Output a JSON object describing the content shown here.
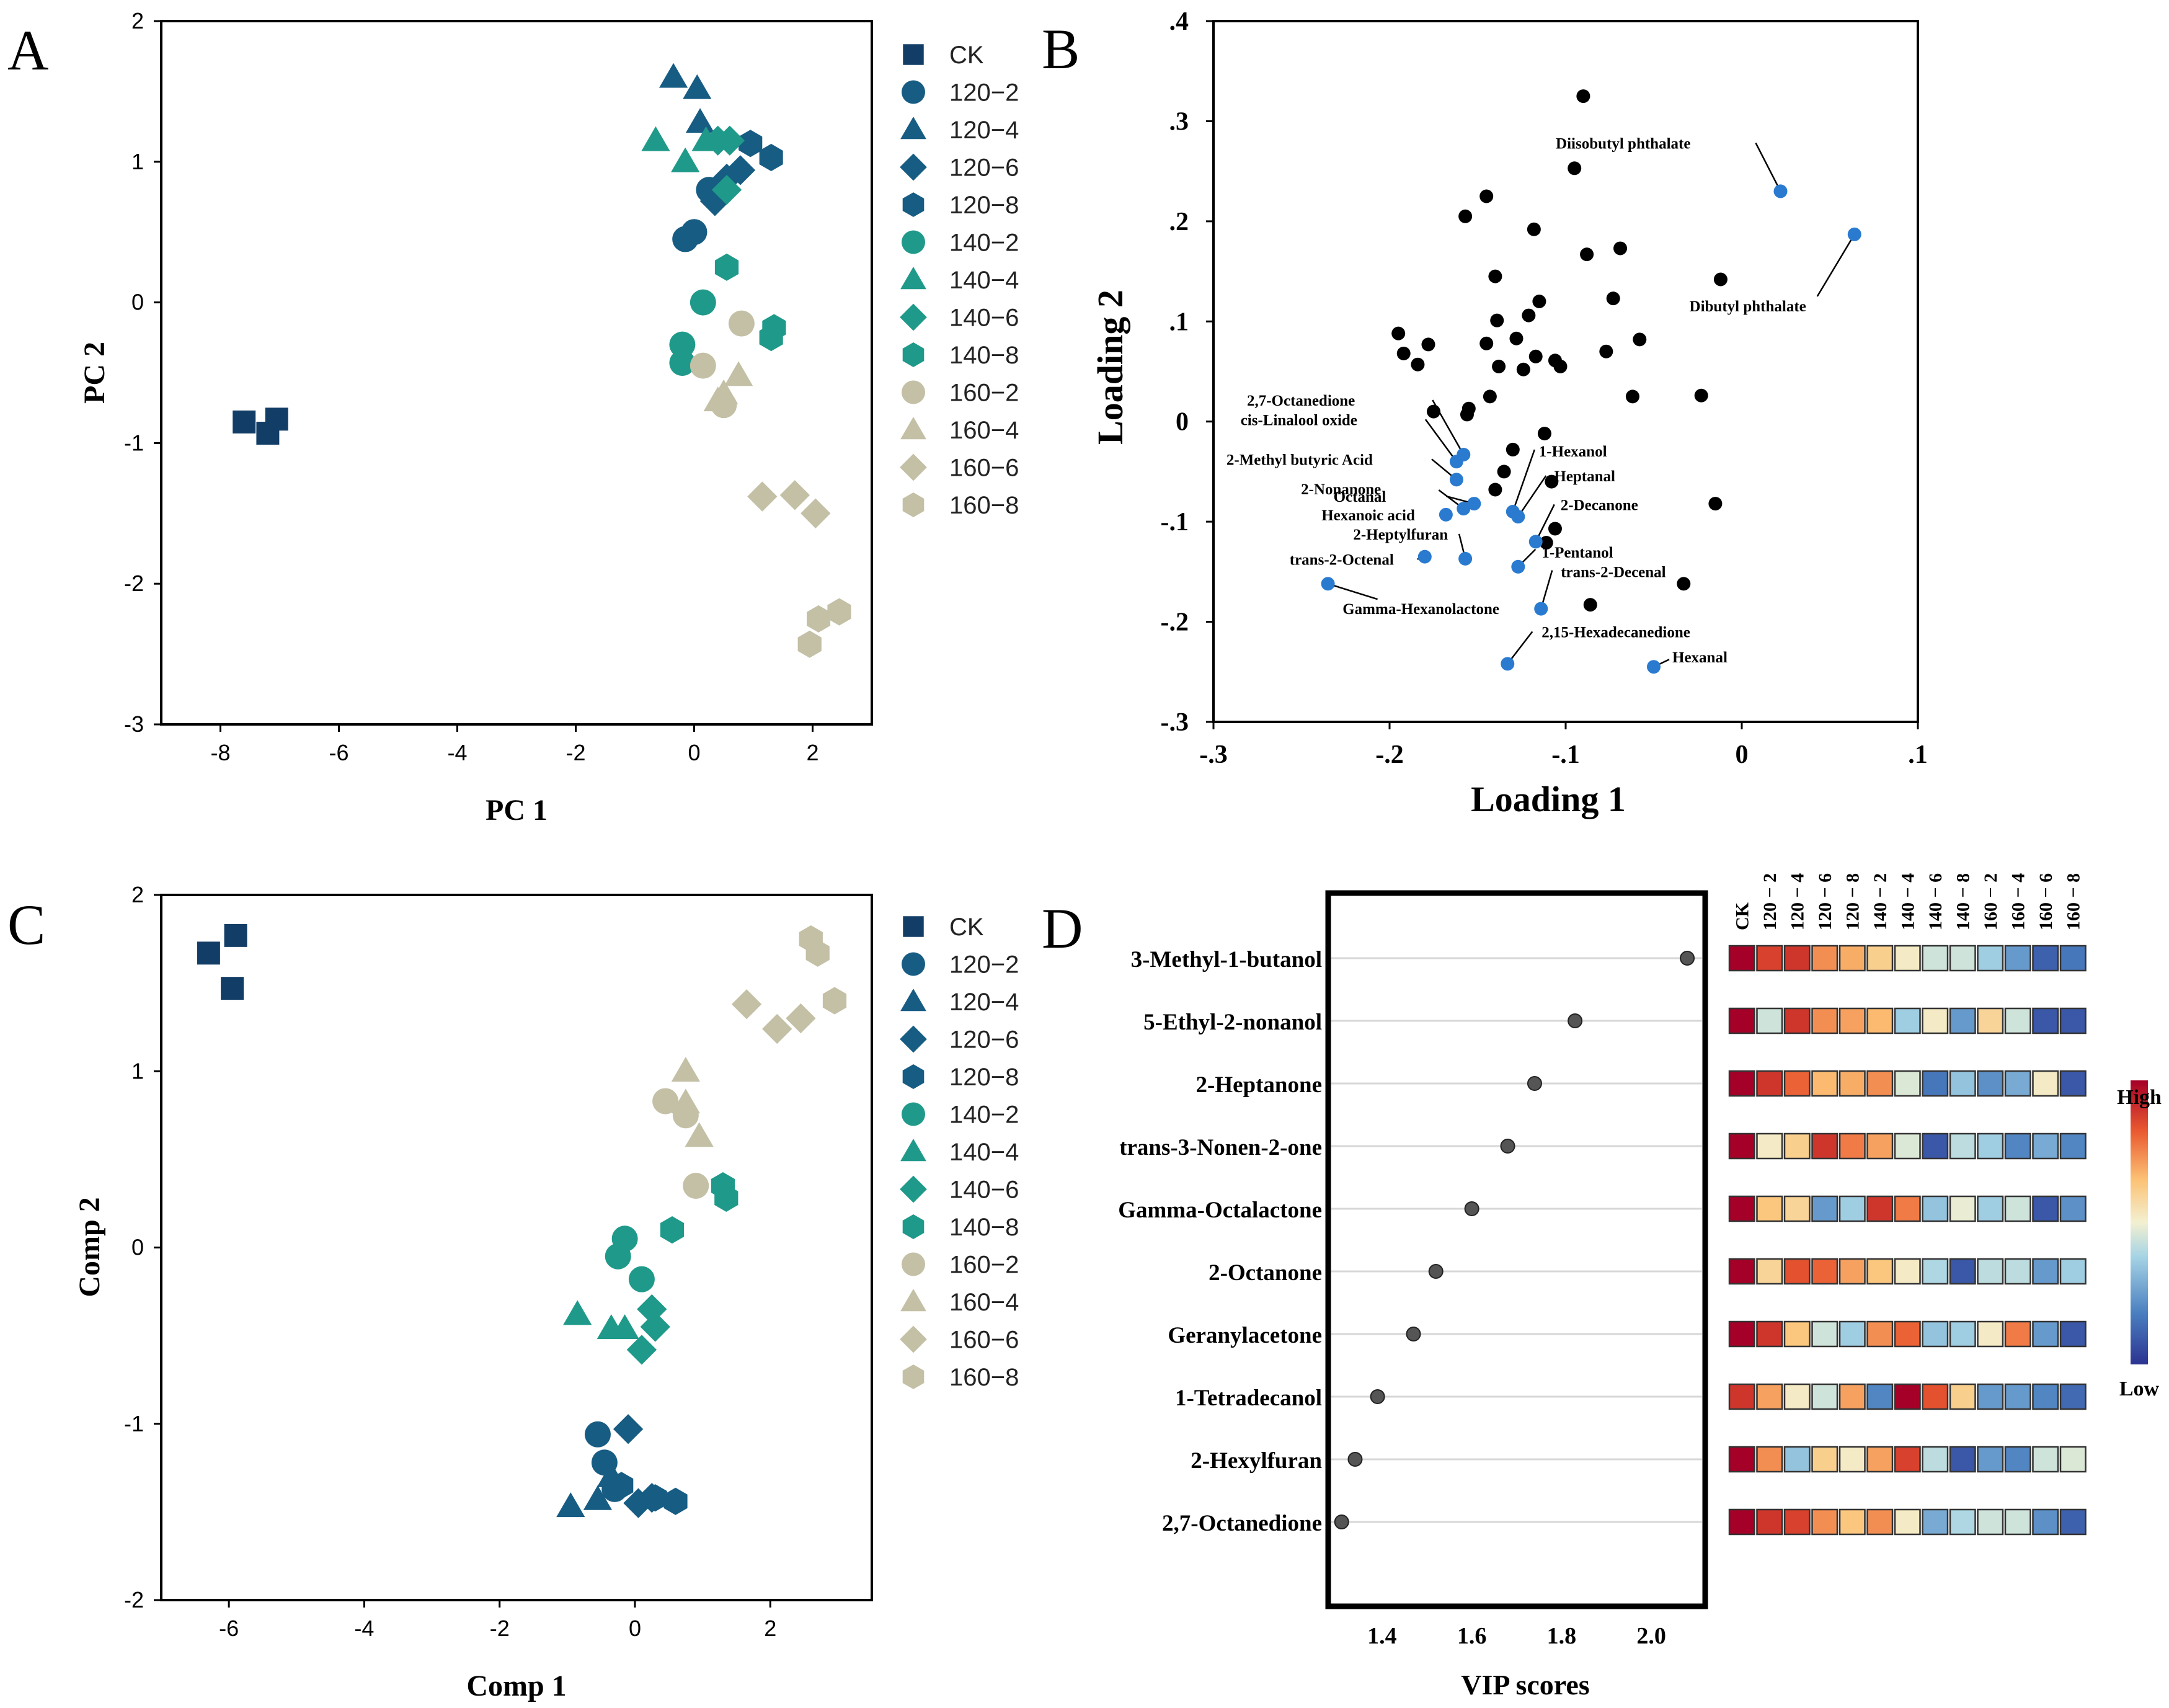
{
  "chart_data": [
    {
      "type": "scatter",
      "panel_label": "A",
      "xlabel": "PC 1",
      "ylabel": "PC 2",
      "xlim": [
        -9,
        3
      ],
      "ylim": [
        -3,
        2
      ],
      "xticks": [
        -8,
        -6,
        -4,
        -2,
        0,
        2
      ],
      "yticks": [
        -3,
        -2,
        -1,
        0,
        1,
        2
      ],
      "legend": {
        "position": "right",
        "entries": [
          {
            "label": "CK",
            "marker": "square",
            "color": "#123d66"
          },
          {
            "label": "120−2",
            "marker": "circle",
            "color": "#175c83"
          },
          {
            "label": "120−4",
            "marker": "triangle",
            "color": "#175c83"
          },
          {
            "label": "120−6",
            "marker": "diamond",
            "color": "#175c83"
          },
          {
            "label": "120−8",
            "marker": "hexagon",
            "color": "#175c83"
          },
          {
            "label": "140−2",
            "marker": "circle",
            "color": "#1f9a8a"
          },
          {
            "label": "140−4",
            "marker": "triangle",
            "color": "#1f9a8a"
          },
          {
            "label": "140−6",
            "marker": "diamond",
            "color": "#1f9a8a"
          },
          {
            "label": "140−8",
            "marker": "hexagon",
            "color": "#1f9a8a"
          },
          {
            "label": "160−2",
            "marker": "circle",
            "color": "#c3c0a6"
          },
          {
            "label": "160−4",
            "marker": "triangle",
            "color": "#c3c0a6"
          },
          {
            "label": "160−6",
            "marker": "diamond",
            "color": "#c3c0a6"
          },
          {
            "label": "160−8",
            "marker": "hexagon",
            "color": "#c3c0a6"
          }
        ]
      },
      "series": [
        {
          "name": "CK",
          "points": [
            [
              -7.6,
              -0.85
            ],
            [
              -7.2,
              -0.93
            ],
            [
              -7.05,
              -0.83
            ]
          ]
        },
        {
          "name": "120−2",
          "points": [
            [
              -0.15,
              0.45
            ],
            [
              0.0,
              0.5
            ],
            [
              0.25,
              0.8
            ]
          ]
        },
        {
          "name": "120−4",
          "points": [
            [
              -0.35,
              1.6
            ],
            [
              0.05,
              1.52
            ],
            [
              0.1,
              1.28
            ]
          ]
        },
        {
          "name": "120−6",
          "points": [
            [
              0.35,
              0.72
            ],
            [
              0.55,
              0.88
            ],
            [
              0.78,
              0.94
            ]
          ]
        },
        {
          "name": "120−8",
          "points": [
            [
              0.95,
              1.13
            ],
            [
              1.3,
              1.03
            ],
            [
              0.45,
              0.82
            ]
          ]
        },
        {
          "name": "140−2",
          "points": [
            [
              0.15,
              0.0
            ],
            [
              -0.2,
              -0.3
            ],
            [
              -0.2,
              -0.43
            ]
          ]
        },
        {
          "name": "140−4",
          "points": [
            [
              -0.65,
              1.15
            ],
            [
              -0.15,
              1.0
            ],
            [
              0.2,
              1.15
            ]
          ]
        },
        {
          "name": "140−6",
          "points": [
            [
              0.4,
              1.15
            ],
            [
              0.6,
              1.15
            ],
            [
              0.55,
              0.8
            ]
          ]
        },
        {
          "name": "140−8",
          "points": [
            [
              0.55,
              0.25
            ],
            [
              1.35,
              -0.18
            ],
            [
              1.3,
              -0.25
            ]
          ]
        },
        {
          "name": "160−2",
          "points": [
            [
              0.8,
              -0.15
            ],
            [
              0.15,
              -0.45
            ],
            [
              0.5,
              -0.73
            ]
          ]
        },
        {
          "name": "160−4",
          "points": [
            [
              0.75,
              -0.52
            ],
            [
              0.5,
              -0.65
            ],
            [
              0.4,
              -0.7
            ]
          ]
        },
        {
          "name": "160−6",
          "points": [
            [
              1.15,
              -1.38
            ],
            [
              1.7,
              -1.37
            ],
            [
              2.05,
              -1.5
            ]
          ]
        },
        {
          "name": "160−8",
          "points": [
            [
              1.95,
              -2.43
            ],
            [
              2.1,
              -2.25
            ],
            [
              2.45,
              -2.2
            ]
          ]
        }
      ]
    },
    {
      "type": "scatter",
      "panel_label": "B",
      "xlabel": "Loading 1",
      "ylabel": "Loading 2",
      "xlim": [
        -0.3,
        0.1
      ],
      "ylim": [
        -0.3,
        0.4
      ],
      "xticks": [
        -0.3,
        -0.2,
        -0.1,
        0,
        0.1
      ],
      "yticks": [
        -0.3,
        -0.2,
        -0.1,
        0,
        0.1,
        0.2,
        0.3,
        0.4
      ],
      "series": [
        {
          "name": "other compounds",
          "color": "#000000",
          "points": [
            [
              -0.09,
              0.325
            ],
            [
              -0.095,
              0.253
            ],
            [
              -0.145,
              0.225
            ],
            [
              -0.157,
              0.205
            ],
            [
              -0.118,
              0.192
            ],
            [
              -0.088,
              0.167
            ],
            [
              -0.069,
              0.173
            ],
            [
              -0.14,
              0.145
            ],
            [
              -0.115,
              0.12
            ],
            [
              -0.073,
              0.123
            ],
            [
              -0.012,
              0.142
            ],
            [
              -0.195,
              0.088
            ],
            [
              -0.178,
              0.077
            ],
            [
              -0.145,
              0.078
            ],
            [
              -0.128,
              0.083
            ],
            [
              -0.121,
              0.106
            ],
            [
              -0.139,
              0.101
            ],
            [
              -0.192,
              0.068
            ],
            [
              -0.184,
              0.057
            ],
            [
              -0.138,
              0.055
            ],
            [
              -0.117,
              0.065
            ],
            [
              -0.124,
              0.052
            ],
            [
              -0.103,
              0.055
            ],
            [
              -0.106,
              0.061
            ],
            [
              -0.077,
              0.07
            ],
            [
              -0.058,
              0.082
            ],
            [
              -0.175,
              0.01
            ],
            [
              -0.156,
              0.007
            ],
            [
              -0.155,
              0.013
            ],
            [
              -0.143,
              0.025
            ],
            [
              -0.062,
              0.025
            ],
            [
              -0.023,
              0.026
            ],
            [
              -0.13,
              -0.028
            ],
            [
              -0.112,
              -0.012
            ],
            [
              -0.135,
              -0.05
            ],
            [
              -0.14,
              -0.068
            ],
            [
              -0.108,
              -0.06
            ],
            [
              -0.106,
              -0.107
            ],
            [
              -0.111,
              -0.121
            ],
            [
              -0.033,
              -0.162
            ],
            [
              -0.086,
              -0.183
            ],
            [
              -0.015,
              -0.082
            ]
          ]
        },
        {
          "name": "labeled compounds",
          "color": "#2a7bd0",
          "points": [
            {
              "label": "Diisobutyl phthalate",
              "x": 0.022,
              "y": 0.23
            },
            {
              "label": "Dibutyl phthalate",
              "x": 0.064,
              "y": 0.187
            },
            {
              "label": "2,7-Octanedione",
              "x": -0.158,
              "y": -0.033
            },
            {
              "label": "cis-Linalool oxide",
              "x": -0.162,
              "y": -0.04
            },
            {
              "label": "2-Methyl butyric Acid",
              "x": -0.162,
              "y": -0.058
            },
            {
              "label": "2-Nonanone",
              "x": -0.158,
              "y": -0.087
            },
            {
              "label": "Octanal",
              "x": -0.152,
              "y": -0.082
            },
            {
              "label": "Hexanoic acid",
              "x": -0.168,
              "y": -0.093
            },
            {
              "label": "2-Heptylfuran",
              "x": -0.157,
              "y": -0.137
            },
            {
              "label": "trans-2-Octenal",
              "x": -0.18,
              "y": -0.135
            },
            {
              "label": "Gamma-Hexanolactone",
              "x": -0.235,
              "y": -0.162
            },
            {
              "label": "1-Hexanol",
              "x": -0.13,
              "y": -0.09
            },
            {
              "label": "Heptanal",
              "x": -0.127,
              "y": -0.095
            },
            {
              "label": "2-Decanone",
              "x": -0.117,
              "y": -0.12
            },
            {
              "label": "1-Pentanol",
              "x": -0.127,
              "y": -0.145
            },
            {
              "label": "trans-2-Decenal",
              "x": -0.114,
              "y": -0.187
            },
            {
              "label": "2,15-Hexadecanedione",
              "x": -0.133,
              "y": -0.242
            },
            {
              "label": "Hexanal",
              "x": -0.05,
              "y": -0.245
            }
          ]
        }
      ]
    },
    {
      "type": "scatter",
      "panel_label": "C",
      "xlabel": "Comp 1",
      "ylabel": "Comp 2",
      "xlim": [
        -7,
        3.5
      ],
      "ylim": [
        -2,
        2
      ],
      "xticks": [
        -6,
        -4,
        -2,
        0,
        2
      ],
      "yticks": [
        -2,
        -1,
        0,
        1,
        2
      ],
      "legend": {
        "position": "right",
        "same_as": "A"
      },
      "series": [
        {
          "name": "CK",
          "points": [
            [
              -6.3,
              1.67
            ],
            [
              -5.9,
              1.77
            ],
            [
              -5.95,
              1.47
            ]
          ]
        },
        {
          "name": "120−2",
          "points": [
            [
              -0.55,
              -1.06
            ],
            [
              -0.45,
              -1.22
            ],
            [
              -0.3,
              -1.37
            ]
          ]
        },
        {
          "name": "120−4",
          "points": [
            [
              -0.95,
              -1.47
            ],
            [
              -0.55,
              -1.43
            ],
            [
              -0.35,
              -1.3
            ]
          ]
        },
        {
          "name": "120−6",
          "points": [
            [
              -0.1,
              -1.03
            ],
            [
              0.05,
              -1.45
            ],
            [
              0.25,
              -1.42
            ]
          ]
        },
        {
          "name": "120−8",
          "points": [
            [
              -0.2,
              -1.35
            ],
            [
              0.3,
              -1.42
            ],
            [
              0.6,
              -1.44
            ]
          ]
        },
        {
          "name": "140−2",
          "points": [
            [
              -0.15,
              0.05
            ],
            [
              -0.25,
              -0.05
            ],
            [
              0.1,
              -0.18
            ]
          ]
        },
        {
          "name": "140−4",
          "points": [
            [
              -0.85,
              -0.38
            ],
            [
              -0.35,
              -0.46
            ],
            [
              -0.15,
              -0.46
            ]
          ]
        },
        {
          "name": "140−6",
          "points": [
            [
              0.25,
              -0.35
            ],
            [
              0.3,
              -0.45
            ],
            [
              0.1,
              -0.58
            ]
          ]
        },
        {
          "name": "140−8",
          "points": [
            [
              0.55,
              0.1
            ],
            [
              1.3,
              0.35
            ],
            [
              1.35,
              0.28
            ]
          ]
        },
        {
          "name": "160−2",
          "points": [
            [
              0.45,
              0.83
            ],
            [
              0.75,
              0.75
            ],
            [
              0.9,
              0.35
            ]
          ]
        },
        {
          "name": "160−4",
          "points": [
            [
              0.75,
              1.0
            ],
            [
              0.75,
              0.82
            ],
            [
              0.95,
              0.63
            ]
          ]
        },
        {
          "name": "160−6",
          "points": [
            [
              1.65,
              1.38
            ],
            [
              2.1,
              1.24
            ],
            [
              2.45,
              1.3
            ]
          ]
        },
        {
          "name": "160−8",
          "points": [
            [
              2.6,
              1.75
            ],
            [
              2.7,
              1.67
            ],
            [
              2.95,
              1.4
            ]
          ]
        }
      ]
    },
    {
      "type": "scatter",
      "panel_label": "D",
      "xlabel": "VIP scores",
      "xlim": [
        1.28,
        2.12
      ],
      "xticks": [
        1.4,
        1.6,
        1.8,
        2.0
      ],
      "compounds": [
        "3-Methyl-1-butanol",
        "5-Ethyl-2-nonanol",
        "2-Heptanone",
        "trans-3-Nonen-2-one",
        "Gamma-Octalactone",
        "2-Octanone",
        "Geranylacetone",
        "1-Tetradecanol",
        "2-Hexylfuran",
        "2,7-Octanedione"
      ],
      "values": [
        2.08,
        1.83,
        1.74,
        1.68,
        1.6,
        1.52,
        1.47,
        1.39,
        1.34,
        1.31
      ]
    },
    {
      "type": "heatmap",
      "panel_label": "D",
      "columns": [
        "CK",
        "120 − 2",
        "120 − 4",
        "120 − 6",
        "120 − 8",
        "140 − 2",
        "140 − 4",
        "140 − 6",
        "140 − 8",
        "160 − 2",
        "160 − 4",
        "160 − 6",
        "160 − 8"
      ],
      "rows": [
        "3-Methyl-1-butanol",
        "5-Ethyl-2-nonanol",
        "2-Heptanone",
        "trans-3-Nonen-2-one",
        "Gamma-Octalactone",
        "2-Octanone",
        "Geranylacetone",
        "1-Tetradecanol",
        "2-Hexylfuran",
        "2,7-Octanedione"
      ],
      "scale": "relative level, 1 = High, 0 = Low",
      "values": [
        [
          1.0,
          0.88,
          0.9,
          0.75,
          0.7,
          0.62,
          0.52,
          0.42,
          0.42,
          0.32,
          0.22,
          0.1,
          0.15
        ],
        [
          1.0,
          0.42,
          0.9,
          0.75,
          0.72,
          0.68,
          0.32,
          0.52,
          0.22,
          0.6,
          0.42,
          0.08,
          0.08
        ],
        [
          1.0,
          0.9,
          0.82,
          0.68,
          0.7,
          0.75,
          0.45,
          0.15,
          0.3,
          0.2,
          0.25,
          0.52,
          0.08
        ],
        [
          1.0,
          0.52,
          0.62,
          0.9,
          0.78,
          0.72,
          0.45,
          0.08,
          0.38,
          0.32,
          0.18,
          0.25,
          0.18
        ],
        [
          1.0,
          0.65,
          0.6,
          0.22,
          0.32,
          0.9,
          0.78,
          0.3,
          0.48,
          0.32,
          0.42,
          0.08,
          0.2
        ],
        [
          1.0,
          0.6,
          0.85,
          0.82,
          0.72,
          0.65,
          0.52,
          0.35,
          0.08,
          0.38,
          0.38,
          0.22,
          0.32
        ],
        [
          1.0,
          0.9,
          0.65,
          0.42,
          0.32,
          0.75,
          0.82,
          0.3,
          0.32,
          0.52,
          0.78,
          0.22,
          0.08
        ],
        [
          0.9,
          0.72,
          0.52,
          0.42,
          0.72,
          0.18,
          1.0,
          0.85,
          0.62,
          0.22,
          0.22,
          0.18,
          0.12
        ],
        [
          1.0,
          0.75,
          0.3,
          0.62,
          0.52,
          0.72,
          0.88,
          0.38,
          0.08,
          0.22,
          0.18,
          0.42,
          0.45
        ],
        [
          1.0,
          0.9,
          0.88,
          0.75,
          0.65,
          0.75,
          0.52,
          0.25,
          0.35,
          0.42,
          0.42,
          0.2,
          0.1
        ]
      ],
      "colorbar": {
        "high_label": "High",
        "low_label": "Low",
        "colors": [
          "#2c3391",
          "#4a7fc0",
          "#a6d4e5",
          "#f3f0d0",
          "#fcc275",
          "#ea5a30",
          "#a50027"
        ]
      }
    }
  ]
}
